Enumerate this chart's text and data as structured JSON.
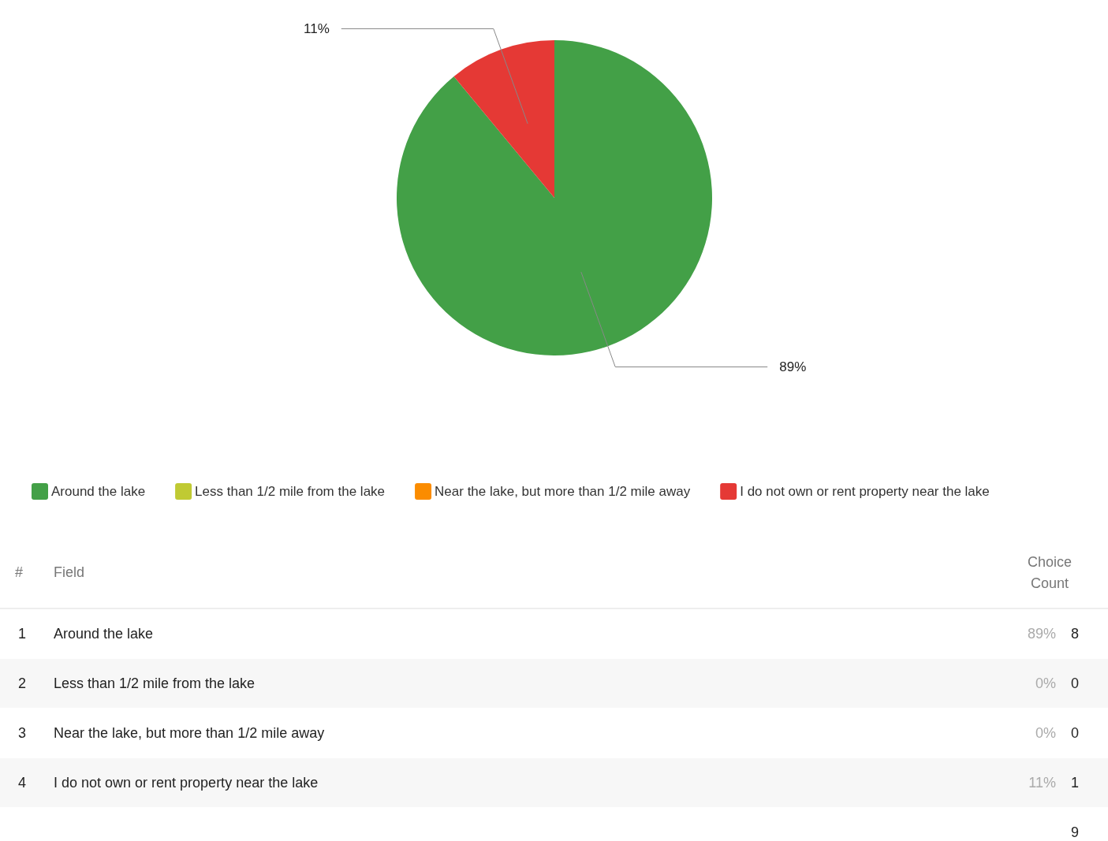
{
  "chart_data": {
    "type": "pie",
    "categories": [
      "Around the lake",
      "Less than 1/2 mile from the lake",
      "Near the lake, but more than 1/2 mile away",
      "I do not own or rent property near the lake"
    ],
    "values": [
      89,
      0,
      0,
      11
    ],
    "value_labels": [
      "89%",
      "0%",
      "0%",
      "11%"
    ],
    "colors": [
      "#43a047",
      "#c0ca33",
      "#fb8c00",
      "#e53935"
    ],
    "legend": "bottom",
    "totals": [
      "9"
    ],
    "annotations": [
      "#",
      "Field",
      "Choice Count",
      "1",
      "2",
      "3",
      "4",
      "8",
      "0",
      "0",
      "1"
    ]
  }
}
